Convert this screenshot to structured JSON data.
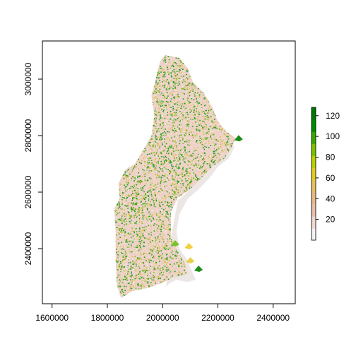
{
  "map": {
    "x_axis": {
      "ticks": [
        1600000,
        1800000,
        2000000,
        2200000,
        2400000
      ],
      "tick_labels": [
        "1600000",
        "1800000",
        "2000000",
        "2200000",
        "2400000"
      ],
      "range": [
        1565000,
        2480000
      ]
    },
    "y_axis": {
      "ticks": [
        2400000,
        2600000,
        2800000,
        3000000
      ],
      "tick_labels": [
        "2400000",
        "2600000",
        "2800000",
        "3000000"
      ],
      "range": [
        2205000,
        3135000
      ]
    },
    "region_outline": [
      [
        2010000,
        3085000
      ],
      [
        2060000,
        3075000
      ],
      [
        2090000,
        3040000
      ],
      [
        2110000,
        2990000
      ],
      [
        2150000,
        2950000
      ],
      [
        2180000,
        2900000
      ],
      [
        2200000,
        2850000
      ],
      [
        2230000,
        2815000
      ],
      [
        2265000,
        2790000
      ],
      [
        2250000,
        2760000
      ],
      [
        2225000,
        2720000
      ],
      [
        2180000,
        2690000
      ],
      [
        2150000,
        2660000
      ],
      [
        2100000,
        2610000
      ],
      [
        2055000,
        2580000
      ],
      [
        2030000,
        2530000
      ],
      [
        2030000,
        2440000
      ],
      [
        2055000,
        2390000
      ],
      [
        2080000,
        2350000
      ],
      [
        2090000,
        2310000
      ],
      [
        2045000,
        2300000
      ],
      [
        2000000,
        2280000
      ],
      [
        1950000,
        2262000
      ],
      [
        1890000,
        2250000
      ],
      [
        1850000,
        2225000
      ],
      [
        1835000,
        2270000
      ],
      [
        1830000,
        2360000
      ],
      [
        1830000,
        2460000
      ],
      [
        1825000,
        2540000
      ],
      [
        1845000,
        2580000
      ],
      [
        1840000,
        2630000
      ],
      [
        1865000,
        2680000
      ],
      [
        1900000,
        2700000
      ],
      [
        1930000,
        2750000
      ],
      [
        1960000,
        2800000
      ],
      [
        1970000,
        2870000
      ],
      [
        1960000,
        2940000
      ],
      [
        1975000,
        3000000
      ],
      [
        1990000,
        3060000
      ]
    ],
    "coastal_shadow": [
      [
        2200000,
        2795000
      ],
      [
        2240000,
        2780000
      ],
      [
        2260000,
        2760000
      ],
      [
        2240000,
        2720000
      ],
      [
        2200000,
        2690000
      ],
      [
        2170000,
        2650000
      ],
      [
        2130000,
        2610000
      ],
      [
        2090000,
        2575000
      ],
      [
        2060000,
        2520000
      ],
      [
        2050000,
        2460000
      ],
      [
        2060000,
        2400000
      ],
      [
        2090000,
        2360000
      ],
      [
        2110000,
        2310000
      ],
      [
        2120000,
        2290000
      ],
      [
        2090000,
        2282000
      ],
      [
        2050000,
        2290000
      ],
      [
        2030000,
        2280000
      ],
      [
        2010000,
        2265000
      ],
      [
        2030000,
        2330000
      ],
      [
        2030000,
        2440000
      ],
      [
        2055000,
        2570000
      ],
      [
        2100000,
        2610000
      ],
      [
        2150000,
        2660000
      ],
      [
        2180000,
        2700000
      ],
      [
        2200000,
        2745000
      ]
    ],
    "highlights": [
      {
        "x": 2275000,
        "y": 2792000,
        "color": "#1a8c1a"
      },
      {
        "x": 2130000,
        "y": 2330000,
        "color": "#1a8c1a"
      },
      {
        "x": 2100000,
        "y": 2360000,
        "color": "#e8d04a"
      },
      {
        "x": 2095000,
        "y": 2410000,
        "color": "#f2d040"
      },
      {
        "x": 2045000,
        "y": 2420000,
        "color": "#7cc02a"
      }
    ]
  },
  "legend": {
    "min": 0,
    "max": 128,
    "ticks": [
      20,
      40,
      60,
      80,
      100,
      120
    ],
    "tick_labels": [
      "20",
      "40",
      "60",
      "80",
      "100",
      "120"
    ],
    "colors": [
      "#f2f2f2",
      "#efd7d0",
      "#e9c0a8",
      "#e8b888",
      "#e6c060",
      "#e0cc20",
      "#b8d000",
      "#7cc000",
      "#38a800",
      "#008c00",
      "#007a00"
    ]
  }
}
